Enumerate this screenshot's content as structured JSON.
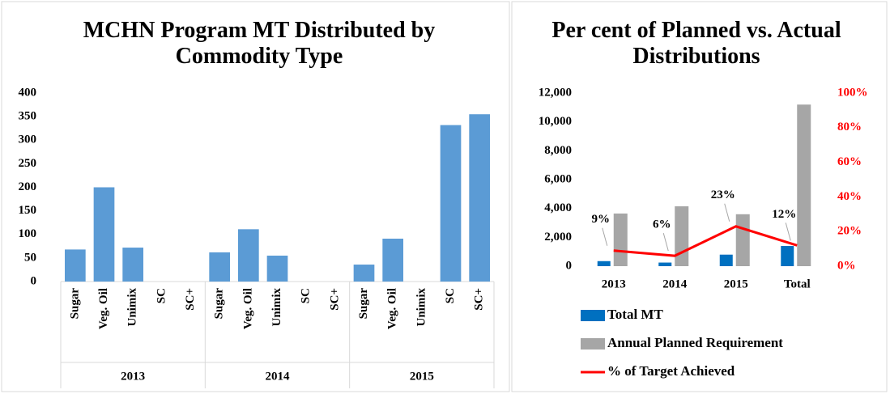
{
  "chart_data": [
    {
      "type": "bar",
      "title": "MCHN Program MT Distributed by Commodity Type",
      "categories": [
        "Sugar",
        "Veg. Oil",
        "Unimix",
        "SC",
        "SC+",
        "Sugar",
        "Veg. Oil",
        "Unimix",
        "SC",
        "SC+",
        "Sugar",
        "Veg. Oil",
        "Unimix",
        "SC",
        "SC+"
      ],
      "category_groups": [
        "2013",
        "2014",
        "2015"
      ],
      "values": [
        68,
        200,
        72,
        0,
        0,
        62,
        111,
        55,
        0,
        0,
        36,
        91,
        0,
        332,
        355
      ],
      "color": "#5b9bd5",
      "ylim": [
        0,
        400
      ],
      "yticks": [
        0,
        50,
        100,
        150,
        200,
        250,
        300,
        350,
        400
      ]
    },
    {
      "type": "combo",
      "title": "Per cent of Planned vs. Actual Distributions",
      "categories": [
        "2013",
        "2014",
        "2015",
        "Total"
      ],
      "series": [
        {
          "name": "Total MT",
          "color": "#0070c0",
          "values": [
            350,
            250,
            800,
            1400
          ]
        },
        {
          "name": "Annual Planned Requirement",
          "color": "#a6a6a6",
          "values": [
            3650,
            4150,
            3600,
            11200
          ]
        },
        {
          "name": "% of Target Achieved",
          "color": "#ff0000",
          "axis": "y2",
          "values": [
            9,
            6,
            23,
            12
          ],
          "value_labels": [
            "9%",
            "6%",
            "23%",
            "12%"
          ]
        }
      ],
      "ylim": [
        0,
        12000
      ],
      "yticks": [
        0,
        {
          "value": 2000,
          "label": "2,000"
        },
        {
          "value": 4000,
          "label": "4,000"
        },
        {
          "value": 6000,
          "label": "6,000"
        },
        {
          "value": 8000,
          "label": "8,000"
        },
        {
          "value": 10000,
          "label": "10,000"
        },
        {
          "value": 12000,
          "label": "12,000"
        }
      ],
      "y2lim": [
        0,
        100
      ],
      "y2ticks": [
        {
          "value": 0,
          "label": "0%"
        },
        {
          "value": 20,
          "label": "20%"
        },
        {
          "value": 40,
          "label": "40%"
        },
        {
          "value": 60,
          "label": "60%"
        },
        {
          "value": 80,
          "label": "80%"
        },
        {
          "value": 100,
          "label": "100%"
        }
      ],
      "y2color": "#ff0000",
      "legend": "bottom"
    }
  ]
}
